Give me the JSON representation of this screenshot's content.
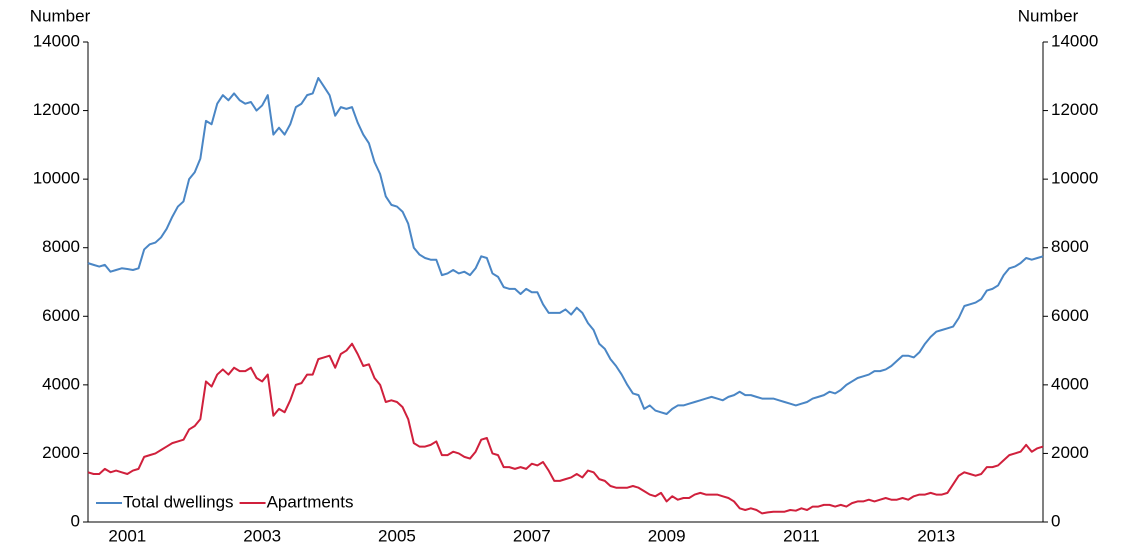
{
  "chart_data": {
    "type": "line",
    "ylabel": "Number",
    "y2label": "Number",
    "categories": [
      null,
      null,
      null,
      null,
      null,
      null,
      null,
      "2001",
      null,
      null,
      null,
      null,
      null,
      null,
      null,
      null,
      null,
      null,
      null,
      null,
      null,
      null,
      null,
      null,
      null,
      null,
      null,
      null,
      null,
      null,
      null,
      "2003",
      null,
      null,
      null,
      null,
      null,
      null,
      null,
      null,
      null,
      null,
      null,
      null,
      null,
      null,
      null,
      null,
      null,
      null,
      null,
      null,
      null,
      null,
      null,
      "2005",
      null,
      null,
      null,
      null,
      null,
      null,
      null,
      null,
      null,
      null,
      null,
      null,
      null,
      null,
      null,
      null,
      null,
      null,
      null,
      null,
      null,
      null,
      null,
      "2007",
      null,
      null,
      null,
      null,
      null,
      null,
      null,
      null,
      null,
      null,
      null,
      null,
      null,
      null,
      null,
      null,
      null,
      null,
      null,
      null,
      null,
      null,
      null,
      "2009",
      null,
      null,
      null,
      null,
      null,
      null,
      null,
      null,
      null,
      null,
      null,
      null,
      null,
      null,
      null,
      null,
      null,
      null,
      null,
      null,
      null,
      null,
      null,
      "2011",
      null,
      null,
      null,
      null,
      null,
      null,
      null,
      null,
      null,
      null,
      null,
      null,
      null,
      null,
      null,
      null,
      null,
      null,
      null,
      null,
      null,
      null,
      null,
      "2013",
      null,
      null,
      null,
      null,
      null,
      null,
      null,
      null,
      null,
      null,
      null,
      null,
      null,
      null,
      null,
      null,
      null,
      null,
      null
    ],
    "series": [
      {
        "name": "Total dwellings",
        "color": "#4a86c5",
        "values": [
          7550,
          7500,
          7450,
          7500,
          7300,
          7350,
          7400,
          7380,
          7350,
          7400,
          7950,
          8100,
          8150,
          8300,
          8550,
          8900,
          9200,
          9350,
          10000,
          10200,
          10600,
          11700,
          11600,
          12200,
          12450,
          12300,
          12500,
          12300,
          12200,
          12250,
          12000,
          12150,
          12450,
          11300,
          11500,
          11300,
          11600,
          12100,
          12200,
          12450,
          12500,
          12950,
          12700,
          12450,
          11850,
          12100,
          12050,
          12100,
          11650,
          11300,
          11050,
          10500,
          10150,
          9500,
          9250,
          9200,
          9050,
          8700,
          8000,
          7800,
          7700,
          7650,
          7650,
          7200,
          7250,
          7350,
          7250,
          7300,
          7200,
          7400,
          7750,
          7700,
          7250,
          7150,
          6850,
          6800,
          6800,
          6650,
          6800,
          6700,
          6700,
          6350,
          6100,
          6100,
          6100,
          6200,
          6050,
          6250,
          6100,
          5800,
          5600,
          5200,
          5050,
          4750,
          4550,
          4300,
          4000,
          3750,
          3700,
          3300,
          3400,
          3250,
          3200,
          3150,
          3300,
          3400,
          3400,
          3450,
          3500,
          3550,
          3600,
          3650,
          3600,
          3550,
          3650,
          3700,
          3800,
          3700,
          3700,
          3650,
          3600,
          3600,
          3600,
          3550,
          3500,
          3450,
          3400,
          3450,
          3500,
          3600,
          3650,
          3700,
          3800,
          3750,
          3850,
          4000,
          4100,
          4200,
          4250,
          4300,
          4400,
          4400,
          4450,
          4550,
          4700,
          4850,
          4850,
          4800,
          4950,
          5200,
          5400,
          5550,
          5600,
          5650,
          5700,
          5950,
          6300,
          6350,
          6400,
          6500,
          6750,
          6800,
          6900,
          7200,
          7400,
          7450,
          7550,
          7700,
          7650,
          7700,
          7750
        ]
      },
      {
        "name": "Apartments",
        "color": "#d0203c",
        "values": [
          1450,
          1400,
          1400,
          1550,
          1450,
          1500,
          1450,
          1400,
          1500,
          1550,
          1900,
          1950,
          2000,
          2100,
          2200,
          2300,
          2350,
          2400,
          2700,
          2800,
          3000,
          4100,
          3950,
          4300,
          4450,
          4300,
          4500,
          4400,
          4400,
          4500,
          4200,
          4100,
          4300,
          3100,
          3300,
          3200,
          3550,
          4000,
          4050,
          4300,
          4300,
          4750,
          4800,
          4850,
          4500,
          4900,
          5000,
          5200,
          4900,
          4550,
          4600,
          4200,
          4000,
          3500,
          3550,
          3500,
          3350,
          3000,
          2300,
          2200,
          2200,
          2250,
          2350,
          1950,
          1950,
          2050,
          2000,
          1900,
          1850,
          2050,
          2400,
          2450,
          2000,
          1950,
          1600,
          1600,
          1550,
          1600,
          1550,
          1700,
          1650,
          1750,
          1500,
          1200,
          1200,
          1250,
          1300,
          1400,
          1300,
          1500,
          1450,
          1250,
          1200,
          1050,
          1000,
          1000,
          1000,
          1050,
          1000,
          900,
          800,
          750,
          850,
          600,
          750,
          650,
          700,
          700,
          800,
          850,
          800,
          800,
          800,
          750,
          700,
          600,
          400,
          350,
          400,
          350,
          250,
          280,
          300,
          300,
          300,
          350,
          330,
          400,
          350,
          450,
          450,
          500,
          500,
          450,
          500,
          450,
          550,
          600,
          600,
          650,
          600,
          650,
          700,
          650,
          650,
          700,
          650,
          750,
          800,
          800,
          850,
          800,
          800,
          850,
          1100,
          1350,
          1450,
          1400,
          1350,
          1400,
          1600,
          1600,
          1650,
          1800,
          1950,
          2000,
          2050,
          2250,
          2050,
          2150,
          2200
        ]
      }
    ],
    "ylim": [
      0,
      14000
    ],
    "yticks": [
      0,
      2000,
      4000,
      6000,
      8000,
      10000,
      12000,
      14000
    ],
    "y2lim": [
      0,
      14000
    ],
    "y2ticks": [
      0,
      2000,
      4000,
      6000,
      8000,
      10000,
      12000,
      14000
    ],
    "grid": false,
    "legend": "lower left"
  }
}
